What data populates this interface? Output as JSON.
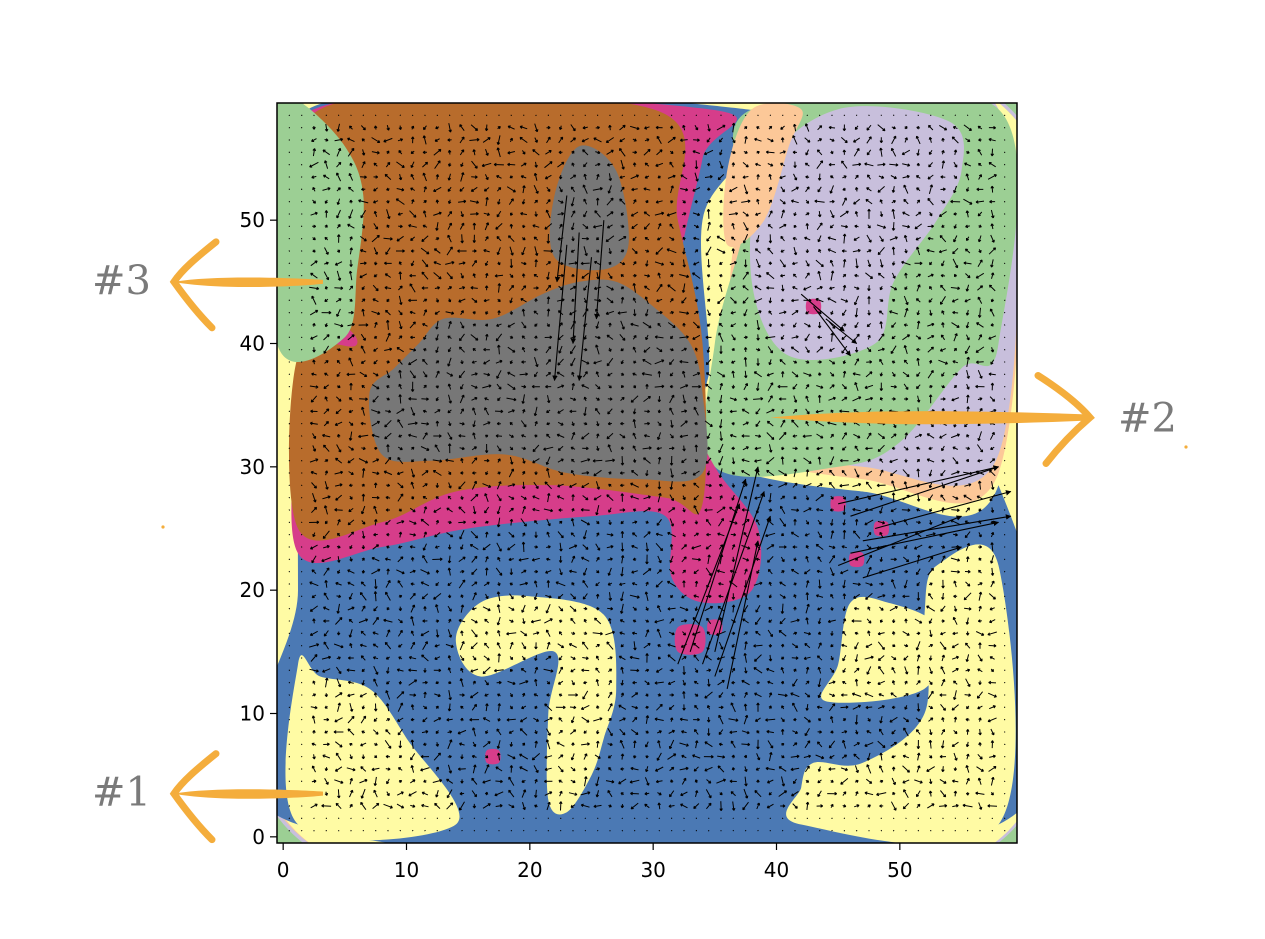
{
  "chart_data": {
    "type": "heatmap",
    "subtype": "contour map with vector field overlay",
    "title": "",
    "xlabel": "",
    "ylabel": "",
    "xlim": [
      -0.5,
      59.5
    ],
    "ylim": [
      59.5,
      -0.5
    ],
    "y_inverted": true,
    "x_ticks": [
      0,
      10,
      20,
      30,
      40,
      50
    ],
    "y_ticks": [
      0,
      10,
      20,
      30,
      40,
      50
    ],
    "grid": false,
    "legend": "none",
    "regions": [
      {
        "color": "#9ccf94",
        "points": [
          [
            -0.5,
            -0.5
          ],
          [
            59.5,
            -0.5
          ],
          [
            59.5,
            59.5
          ],
          [
            -0.5,
            59.5
          ]
        ]
      },
      {
        "color": "#c8bfdc",
        "points": [
          [
            0.6,
            0.4
          ],
          [
            59,
            0.4
          ],
          [
            59,
            59
          ],
          [
            0.6,
            59
          ]
        ]
      },
      {
        "color": "#fcc898",
        "points": [
          [
            0.8,
            0.6
          ],
          [
            58.8,
            0.6
          ],
          [
            58.8,
            58.8
          ],
          [
            0.8,
            58.8
          ]
        ]
      },
      {
        "color": "#fffba4",
        "points": [
          [
            1,
            0.5
          ],
          [
            58.8,
            0.5
          ],
          [
            58.8,
            58.8
          ],
          [
            1,
            58.8
          ]
        ]
      },
      {
        "color": "#4b79b4",
        "points": [
          [
            1.2,
            1
          ],
          [
            58,
            1
          ],
          [
            58,
            28.5
          ],
          [
            47,
            28
          ],
          [
            39,
            31
          ],
          [
            35,
            32
          ],
          [
            34.5,
            40
          ],
          [
            34,
            50
          ],
          [
            37,
            55
          ],
          [
            37.5,
            59
          ],
          [
            2,
            59
          ],
          [
            1.2,
            40
          ],
          [
            1.2,
            20
          ]
        ]
      },
      {
        "color": "#fffba4",
        "points": [
          [
            42,
            1
          ],
          [
            58,
            1
          ],
          [
            58,
            22
          ],
          [
            53,
            22
          ],
          [
            52,
            18
          ],
          [
            52,
            10
          ],
          [
            47,
            6
          ],
          [
            43,
            6
          ],
          [
            42,
            4
          ]
        ]
      },
      {
        "color": "#fffba4",
        "points": [
          [
            44,
            11
          ],
          [
            52,
            12
          ],
          [
            53,
            17
          ],
          [
            49,
            19
          ],
          [
            46,
            19
          ],
          [
            45,
            14
          ]
        ]
      },
      {
        "color": "#fffba4",
        "points": [
          [
            21.5,
            3
          ],
          [
            23,
            2
          ],
          [
            25,
            5
          ],
          [
            26,
            8
          ],
          [
            27,
            12
          ],
          [
            26,
            18
          ],
          [
            20,
            19.5
          ],
          [
            16,
            19
          ],
          [
            14,
            16
          ],
          [
            16,
            13
          ],
          [
            22,
            15
          ],
          [
            21.5,
            10
          ]
        ]
      },
      {
        "color": "#fffba4",
        "points": [
          [
            1.2,
            1
          ],
          [
            14,
            1
          ],
          [
            10,
            8
          ],
          [
            7,
            12
          ],
          [
            3,
            13
          ],
          [
            1.2,
            14
          ]
        ]
      },
      {
        "color": "#fffba4",
        "points": [
          [
            34.5,
            31
          ],
          [
            47,
            28
          ],
          [
            58,
            28.5
          ],
          [
            58,
            59
          ],
          [
            40,
            59
          ],
          [
            36,
            50
          ],
          [
            35,
            40
          ]
        ]
      },
      {
        "color": "#fcc898",
        "points": [
          [
            35.5,
            32
          ],
          [
            47,
            29
          ],
          [
            58,
            29.5
          ],
          [
            58,
            59
          ],
          [
            42,
            59
          ],
          [
            37,
            50
          ],
          [
            36,
            40
          ]
        ]
      },
      {
        "color": "#c8bfdc",
        "points": [
          [
            36,
            33
          ],
          [
            47,
            30
          ],
          [
            58,
            31
          ],
          [
            58,
            59
          ],
          [
            44,
            59
          ],
          [
            38,
            50
          ],
          [
            37,
            40
          ]
        ]
      },
      {
        "color": "#9ccf94",
        "points": [
          [
            35,
            30
          ],
          [
            45,
            30
          ],
          [
            50,
            32
          ],
          [
            55,
            38
          ],
          [
            58,
            40
          ],
          [
            58,
            59
          ],
          [
            38,
            59
          ],
          [
            37.5,
            50
          ],
          [
            35,
            40
          ]
        ]
      },
      {
        "color": "#c8bfdc",
        "points": [
          [
            41,
            39
          ],
          [
            48,
            40
          ],
          [
            49.5,
            45
          ],
          [
            53,
            50
          ],
          [
            55,
            54
          ],
          [
            54,
            58
          ],
          [
            45,
            59
          ],
          [
            39,
            54
          ],
          [
            38,
            45
          ]
        ]
      },
      {
        "color": "#fcc898",
        "points": [
          [
            36,
            48
          ],
          [
            39,
            50
          ],
          [
            41,
            56
          ],
          [
            42,
            59
          ],
          [
            38,
            59
          ],
          [
            36,
            54
          ]
        ]
      },
      {
        "color": "#d63d8a",
        "points": [
          [
            1.2,
            23
          ],
          [
            8,
            23.5
          ],
          [
            15,
            25
          ],
          [
            25,
            26
          ],
          [
            31,
            26
          ],
          [
            31.5,
            21
          ],
          [
            34,
            19
          ],
          [
            38,
            20
          ],
          [
            38.5,
            25
          ],
          [
            35,
            30
          ],
          [
            33,
            35
          ],
          [
            32,
            45
          ],
          [
            34,
            55
          ],
          [
            34.5,
            59
          ],
          [
            2.5,
            59
          ],
          [
            2,
            45
          ],
          [
            1.2,
            35
          ]
        ]
      },
      {
        "color": "#d63d8a",
        "points": [
          [
            9,
            46
          ],
          [
            13,
            47
          ],
          [
            13,
            50
          ],
          [
            9,
            50
          ]
        ]
      },
      {
        "color": "#b86c2c",
        "points": [
          [
            1.2,
            25
          ],
          [
            8,
            25.5
          ],
          [
            14,
            28
          ],
          [
            22,
            28.5
          ],
          [
            31,
            27.5
          ],
          [
            34,
            27
          ],
          [
            34,
            40
          ],
          [
            32,
            50
          ],
          [
            30,
            59
          ],
          [
            3,
            59
          ],
          [
            3,
            45
          ],
          [
            6,
            40
          ],
          [
            1.2,
            39
          ]
        ]
      },
      {
        "color": "#777777",
        "points": [
          [
            8,
            31
          ],
          [
            12,
            30.5
          ],
          [
            18,
            31
          ],
          [
            23,
            29.5
          ],
          [
            29,
            29
          ],
          [
            34,
            29.5
          ],
          [
            34,
            36
          ],
          [
            33,
            40
          ],
          [
            30,
            43
          ],
          [
            27,
            45
          ],
          [
            24,
            45
          ],
          [
            21,
            44
          ],
          [
            17,
            42
          ],
          [
            13,
            42
          ],
          [
            11,
            40
          ],
          [
            9,
            38
          ],
          [
            7,
            36
          ]
        ]
      },
      {
        "color": "#777777",
        "points": [
          [
            22,
            47
          ],
          [
            26,
            46
          ],
          [
            28,
            48
          ],
          [
            27,
            54
          ],
          [
            24,
            56
          ],
          [
            22,
            52
          ]
        ]
      },
      {
        "color": "#9ccf94",
        "points": [
          [
            -0.5,
            40
          ],
          [
            5,
            40.5
          ],
          [
            6,
            46
          ],
          [
            6.5,
            52
          ],
          [
            5,
            56
          ],
          [
            1.5,
            59.5
          ],
          [
            -0.5,
            59.5
          ]
        ]
      },
      {
        "color": "#d63d8a",
        "points": [
          [
            16.5,
            6
          ],
          [
            17.5,
            6
          ],
          [
            17.5,
            7
          ],
          [
            16.5,
            7
          ]
        ]
      },
      {
        "color": "#d63d8a",
        "points": [
          [
            32,
            15
          ],
          [
            34,
            15
          ],
          [
            34,
            17
          ],
          [
            32,
            17
          ]
        ]
      },
      {
        "color": "#d63d8a",
        "points": [
          [
            34.5,
            16.5
          ],
          [
            35.5,
            16.5
          ],
          [
            35.5,
            17.5
          ],
          [
            34.5,
            17.5
          ]
        ]
      },
      {
        "color": "#d63d8a",
        "points": [
          [
            44.5,
            26.5
          ],
          [
            45.5,
            26.5
          ],
          [
            45.5,
            27.5
          ],
          [
            44.5,
            27.5
          ]
        ]
      },
      {
        "color": "#d63d8a",
        "points": [
          [
            46,
            22
          ],
          [
            47,
            22
          ],
          [
            47,
            23
          ],
          [
            46,
            23
          ]
        ]
      },
      {
        "color": "#d63d8a",
        "points": [
          [
            48,
            24.5
          ],
          [
            49,
            24.5
          ],
          [
            49,
            25.5
          ],
          [
            48,
            25.5
          ]
        ]
      },
      {
        "color": "#d63d8a",
        "points": [
          [
            42.5,
            42.5
          ],
          [
            43.5,
            42.5
          ],
          [
            43.5,
            43.5
          ],
          [
            42.5,
            43.5
          ]
        ]
      }
    ],
    "vectors": [
      {
        "x": 33,
        "y": 15,
        "u": 4.5,
        "v": -14
      },
      {
        "x": 34,
        "y": 14,
        "u": 5,
        "v": -14
      },
      {
        "x": 35,
        "y": 13,
        "u": 4.5,
        "v": -13
      },
      {
        "x": 35,
        "y": 15,
        "u": 3.5,
        "v": -15
      },
      {
        "x": 36,
        "y": 12,
        "u": 2.5,
        "v": -12
      },
      {
        "x": 32,
        "y": 14,
        "u": 5,
        "v": -13
      },
      {
        "x": 45,
        "y": 22,
        "u": 10,
        "v": -4
      },
      {
        "x": 46,
        "y": 23,
        "u": 12,
        "v": -2.5
      },
      {
        "x": 47,
        "y": 24,
        "u": 12,
        "v": -2
      },
      {
        "x": 48,
        "y": 25,
        "u": 11,
        "v": -3
      },
      {
        "x": 46,
        "y": 26,
        "u": 12,
        "v": -4
      },
      {
        "x": 45,
        "y": 27,
        "u": 13,
        "v": -3
      },
      {
        "x": 47,
        "y": 21,
        "u": 8,
        "v": -2.5
      },
      {
        "x": 23,
        "y": 48,
        "u": -1,
        "v": 11
      },
      {
        "x": 24,
        "y": 49,
        "u": -0.5,
        "v": 9
      },
      {
        "x": 25,
        "y": 47,
        "u": -1,
        "v": 10
      },
      {
        "x": 23,
        "y": 52,
        "u": -0.8,
        "v": 7
      },
      {
        "x": 26,
        "y": 50,
        "u": -0.6,
        "v": 8
      },
      {
        "x": 43,
        "y": 43,
        "u": 3,
        "v": 4
      },
      {
        "x": 42,
        "y": 44,
        "u": 3.5,
        "v": 3
      },
      {
        "x": 44,
        "y": 42,
        "u": 2.5,
        "v": 2
      }
    ],
    "annotations": [
      {
        "text": "#1",
        "y": 3.5,
        "side": "left"
      },
      {
        "text": "#2",
        "y": 34,
        "side": "right"
      },
      {
        "text": "#3",
        "y": 45,
        "side": "left"
      }
    ]
  }
}
